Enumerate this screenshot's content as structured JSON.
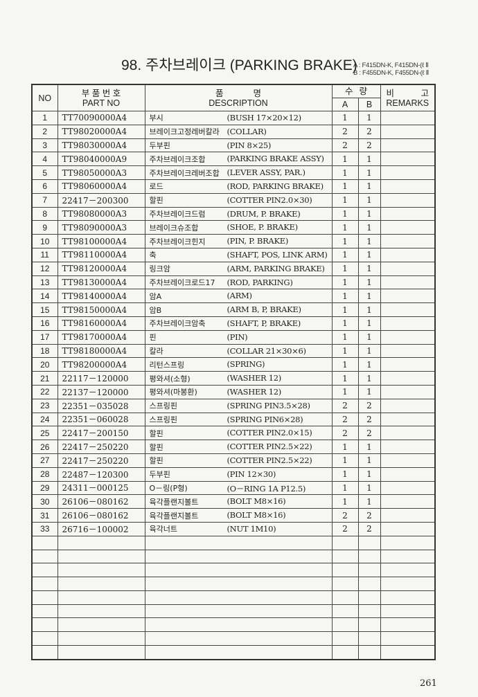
{
  "title": "98. 주차브레이크 (PARKING BRAKE)",
  "models": [
    "A : F415DN-K, F415DN-(ℓ Ⅱ",
    "B : F455DN-K, F455DN-(ℓ Ⅱ"
  ],
  "headers": {
    "no": "NO",
    "part_ko": "부 품 번 호",
    "part_en": "PART  NO",
    "desc_ko_1": "품",
    "desc_ko_2": "명",
    "desc_en": "DESCRIPTION",
    "qty_ko_1": "수",
    "qty_ko_2": "량",
    "a": "A",
    "b": "B",
    "rem_ko_1": "비",
    "rem_ko_2": "고",
    "rem_en": "REMARKS"
  },
  "rows": [
    {
      "no": "1",
      "part": "TT70090000A4",
      "ko": "부시",
      "en": "(BUSH 17×20×12)",
      "a": "1",
      "b": "1"
    },
    {
      "no": "2",
      "part": "TT98020000A4",
      "ko": "브레이크고정레버칼라",
      "en": "(COLLAR)",
      "a": "2",
      "b": "2"
    },
    {
      "no": "3",
      "part": "TT98030000A4",
      "ko": "두부핀",
      "en": "(PIN 8×25)",
      "a": "2",
      "b": "2"
    },
    {
      "no": "4",
      "part": "TT98040000A9",
      "ko": "주차브레이크조합",
      "en": "(PARKING BRAKE ASSY)",
      "a": "1",
      "b": "1"
    },
    {
      "no": "5",
      "part": "TT98050000A3",
      "ko": "주차브레이크레버조합",
      "en": "(LEVER ASSY, PAR.)",
      "a": "1",
      "b": "1"
    },
    {
      "no": "6",
      "part": "TT98060000A4",
      "ko": "로드",
      "en": "(ROD, PARKING BRAKE)",
      "a": "1",
      "b": "1"
    },
    {
      "no": "7",
      "part": "22417－200300",
      "ko": "할핀",
      "en": "(COTTER PIN2.0×30)",
      "a": "1",
      "b": "1"
    },
    {
      "no": "8",
      "part": "TT98080000A3",
      "ko": "주차브레이크드럼",
      "en": "(DRUM, P. BRAKE)",
      "a": "1",
      "b": "1"
    },
    {
      "no": "9",
      "part": "TT98090000A3",
      "ko": "브레이크슈조합",
      "en": "(SHOE, P. BRAKE)",
      "a": "1",
      "b": "1"
    },
    {
      "no": "10",
      "part": "TT98100000A4",
      "ko": "주차브레이크힌지",
      "en": "(PIN, P. BRAKE)",
      "a": "1",
      "b": "1"
    },
    {
      "no": "11",
      "part": "TT98110000A4",
      "ko": "축",
      "en": "(SHAFT, POS, LINK ARM)",
      "a": "1",
      "b": "1"
    },
    {
      "no": "12",
      "part": "TT98120000A4",
      "ko": "링크암",
      "en": "(ARM, PARKING BRAKE)",
      "a": "1",
      "b": "1"
    },
    {
      "no": "13",
      "part": "TT98130000A4",
      "ko": "주차브레이크로드17",
      "en": "(ROD, PARKING)",
      "a": "1",
      "b": "1"
    },
    {
      "no": "14",
      "part": "TT98140000A4",
      "ko": "암A",
      "en": "(ARM)",
      "a": "1",
      "b": "1"
    },
    {
      "no": "15",
      "part": "TT98150000A4",
      "ko": "암B",
      "en": "(ARM B, P, BRAKE)",
      "a": "1",
      "b": "1"
    },
    {
      "no": "16",
      "part": "TT98160000A4",
      "ko": "주차브레이크암축",
      "en": "(SHAFT, P, BRAKE)",
      "a": "1",
      "b": "1"
    },
    {
      "no": "17",
      "part": "TT98170000A4",
      "ko": "핀",
      "en": "(PIN)",
      "a": "1",
      "b": "1"
    },
    {
      "no": "18",
      "part": "TT98180000A4",
      "ko": "칼라",
      "en": "(COLLAR 21×30×6)",
      "a": "1",
      "b": "1"
    },
    {
      "no": "20",
      "part": "TT98200000A4",
      "ko": "리턴스프링",
      "en": "(SPRING)",
      "a": "1",
      "b": "1"
    },
    {
      "no": "21",
      "part": "22117－120000",
      "ko": "평와셔(소형)",
      "en": "(WASHER 12)",
      "a": "1",
      "b": "1"
    },
    {
      "no": "22",
      "part": "22137－120000",
      "ko": "평와셔(마봉환)",
      "en": "(WASHER 12)",
      "a": "1",
      "b": "1"
    },
    {
      "no": "23",
      "part": "22351－035028",
      "ko": "스프링핀",
      "en": "(SPRING PIN3.5×28)",
      "a": "2",
      "b": "2"
    },
    {
      "no": "24",
      "part": "22351－060028",
      "ko": "스프링핀",
      "en": "(SPRING PIN6×28)",
      "a": "2",
      "b": "2"
    },
    {
      "no": "25",
      "part": "22417－200150",
      "ko": "할핀",
      "en": "(COTTER PIN2.0×15)",
      "a": "2",
      "b": "2"
    },
    {
      "no": "26",
      "part": "22417－250220",
      "ko": "할핀",
      "en": "(COTTER PIN2.5×22)",
      "a": "1",
      "b": "1"
    },
    {
      "no": "27",
      "part": "22417－250220",
      "ko": "할핀",
      "en": "(COTTER PIN2.5×22)",
      "a": "1",
      "b": "1"
    },
    {
      "no": "28",
      "part": "22487－120300",
      "ko": "두부핀",
      "en": "(PIN 12×30)",
      "a": "1",
      "b": "1"
    },
    {
      "no": "29",
      "part": "24311－000125",
      "ko": "O－링(P형)",
      "en": "(O－RING 1A P12.5)",
      "a": "1",
      "b": "1"
    },
    {
      "no": "30",
      "part": "26106－080162",
      "ko": "육각플랜지볼트",
      "en": "(BOLT M8×16)",
      "a": "1",
      "b": "1"
    },
    {
      "no": "31",
      "part": "26106－080162",
      "ko": "육각플랜지볼트",
      "en": "(BOLT M8×16)",
      "a": "2",
      "b": "2"
    },
    {
      "no": "33",
      "part": "26716－100002",
      "ko": "육각너트",
      "en": "(NUT 1M10)",
      "a": "2",
      "b": "2"
    }
  ],
  "empty_rows": 9,
  "page_number": "261"
}
